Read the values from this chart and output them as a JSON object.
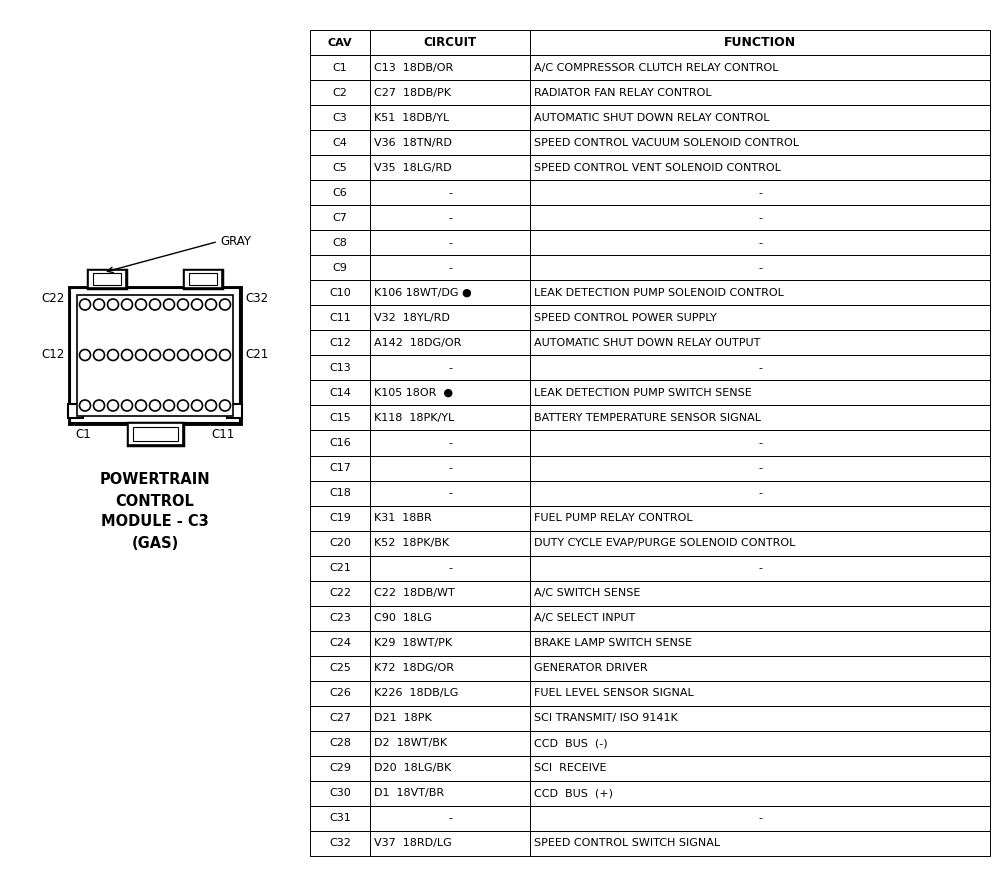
{
  "title": "POWERTRAIN\nCONTROL\nMODULE - C3\n(GAS)",
  "headers": [
    "CAV",
    "CIRCUIT",
    "FUNCTION"
  ],
  "rows": [
    [
      "C1",
      "C13  18DB/OR",
      "A/C COMPRESSOR CLUTCH RELAY CONTROL"
    ],
    [
      "C2",
      "C27  18DB/PK",
      "RADIATOR FAN RELAY CONTROL"
    ],
    [
      "C3",
      "K51  18DB/YL",
      "AUTOMATIC SHUT DOWN RELAY CONTROL"
    ],
    [
      "C4",
      "V36  18TN/RD",
      "SPEED CONTROL VACUUM SOLENOID CONTROL"
    ],
    [
      "C5",
      "V35  18LG/RD",
      "SPEED CONTROL VENT SOLENOID CONTROL"
    ],
    [
      "C6",
      "-",
      "-"
    ],
    [
      "C7",
      "-",
      "-"
    ],
    [
      "C8",
      "-",
      "-"
    ],
    [
      "C9",
      "-",
      "-"
    ],
    [
      "C10",
      "K106 18WT/DG ●",
      "LEAK DETECTION PUMP SOLENOID CONTROL"
    ],
    [
      "C11",
      "V32  18YL/RD",
      "SPEED CONTROL POWER SUPPLY"
    ],
    [
      "C12",
      "A142  18DG/OR",
      "AUTOMATIC SHUT DOWN RELAY OUTPUT"
    ],
    [
      "C13",
      "-",
      "-"
    ],
    [
      "C14",
      "K105 18OR  ●",
      "LEAK DETECTION PUMP SWITCH SENSE"
    ],
    [
      "C15",
      "K118  18PK/YL",
      "BATTERY TEMPERATURE SENSOR SIGNAL"
    ],
    [
      "C16",
      "-",
      "-"
    ],
    [
      "C17",
      "-",
      "-"
    ],
    [
      "C18",
      "-",
      "-"
    ],
    [
      "C19",
      "K31  18BR",
      "FUEL PUMP RELAY CONTROL"
    ],
    [
      "C20",
      "K52  18PK/BK",
      "DUTY CYCLE EVAP/PURGE SOLENOID CONTROL"
    ],
    [
      "C21",
      "-",
      "-"
    ],
    [
      "C22",
      "C22  18DB/WT",
      "A/C SWITCH SENSE"
    ],
    [
      "C23",
      "C90  18LG",
      "A/C SELECT INPUT"
    ],
    [
      "C24",
      "K29  18WT/PK",
      "BRAKE LAMP SWITCH SENSE"
    ],
    [
      "C25",
      "K72  18DG/OR",
      "GENERATOR DRIVER"
    ],
    [
      "C26",
      "K226  18DB/LG",
      "FUEL LEVEL SENSOR SIGNAL"
    ],
    [
      "C27",
      "D21  18PK",
      "SCI TRANSMIT/ ISO 9141K"
    ],
    [
      "C28",
      "D2  18WT/BK",
      "CCD  BUS  (-)"
    ],
    [
      "C29",
      "D20  18LG/BK",
      "SCI  RECEIVE"
    ],
    [
      "C30",
      "D1  18VT/BR",
      "CCD  BUS  (+)"
    ],
    [
      "C31",
      "-",
      "-"
    ],
    [
      "C32",
      "V37  18RD/LG",
      "SPEED CONTROL SWITCH SIGNAL"
    ]
  ],
  "background_color": "#ffffff",
  "border_color": "#000000",
  "text_color": "#000000",
  "fig_width": 10.01,
  "fig_height": 8.76
}
